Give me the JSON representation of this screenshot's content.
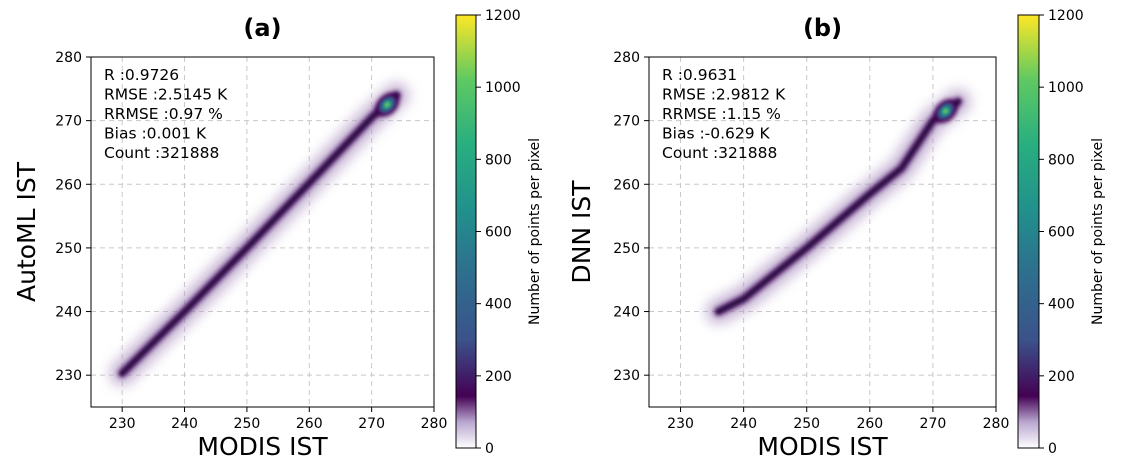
{
  "chart_data": [
    {
      "type": "heatmap",
      "title": "(a)",
      "xlabel": "MODIS IST",
      "ylabel": "AutoML IST",
      "xlim": [
        225,
        280
      ],
      "ylim": [
        225,
        280
      ],
      "xticks": [
        230,
        240,
        250,
        260,
        270,
        280
      ],
      "yticks": [
        230,
        240,
        250,
        260,
        270,
        280
      ],
      "grid": true,
      "density_path": [
        [
          230,
          230.3
        ],
        [
          240,
          240
        ],
        [
          250,
          250
        ],
        [
          260,
          260.2
        ],
        [
          270,
          270.5
        ],
        [
          274,
          274
        ]
      ],
      "hotspot": {
        "x": 272.5,
        "y": 272.5
      },
      "stats": [
        "R :0.9726",
        "RMSE :2.5145 K",
        "RRMSE :0.97 %",
        "Bias :0.001 K",
        "Count :321888"
      ],
      "colorbar": {
        "label": "Number of points per pixel",
        "range": [
          0,
          1200
        ],
        "ticks": [
          0,
          200,
          400,
          600,
          800,
          1000,
          1200
        ]
      }
    },
    {
      "type": "heatmap",
      "title": "(b)",
      "xlabel": "MODIS IST",
      "ylabel": "DNN IST",
      "xlim": [
        225,
        280
      ],
      "ylim": [
        225,
        280
      ],
      "xticks": [
        230,
        240,
        250,
        260,
        270,
        280
      ],
      "yticks": [
        230,
        240,
        250,
        260,
        270,
        280
      ],
      "grid": true,
      "density_path": [
        [
          236,
          240
        ],
        [
          240,
          242
        ],
        [
          250,
          250
        ],
        [
          260,
          258.5
        ],
        [
          265,
          262.5
        ],
        [
          270,
          270
        ],
        [
          274,
          273
        ]
      ],
      "hotspot": {
        "x": 272,
        "y": 271.5
      },
      "stats": [
        "R :0.9631",
        "RMSE :2.9812 K",
        "RRMSE :1.15 %",
        "Bias :-0.629 K",
        "Count :321888"
      ],
      "colorbar": {
        "label": "Number of points per pixel",
        "range": [
          0,
          1200
        ],
        "ticks": [
          0,
          200,
          400,
          600,
          800,
          1000,
          1200
        ]
      }
    }
  ]
}
